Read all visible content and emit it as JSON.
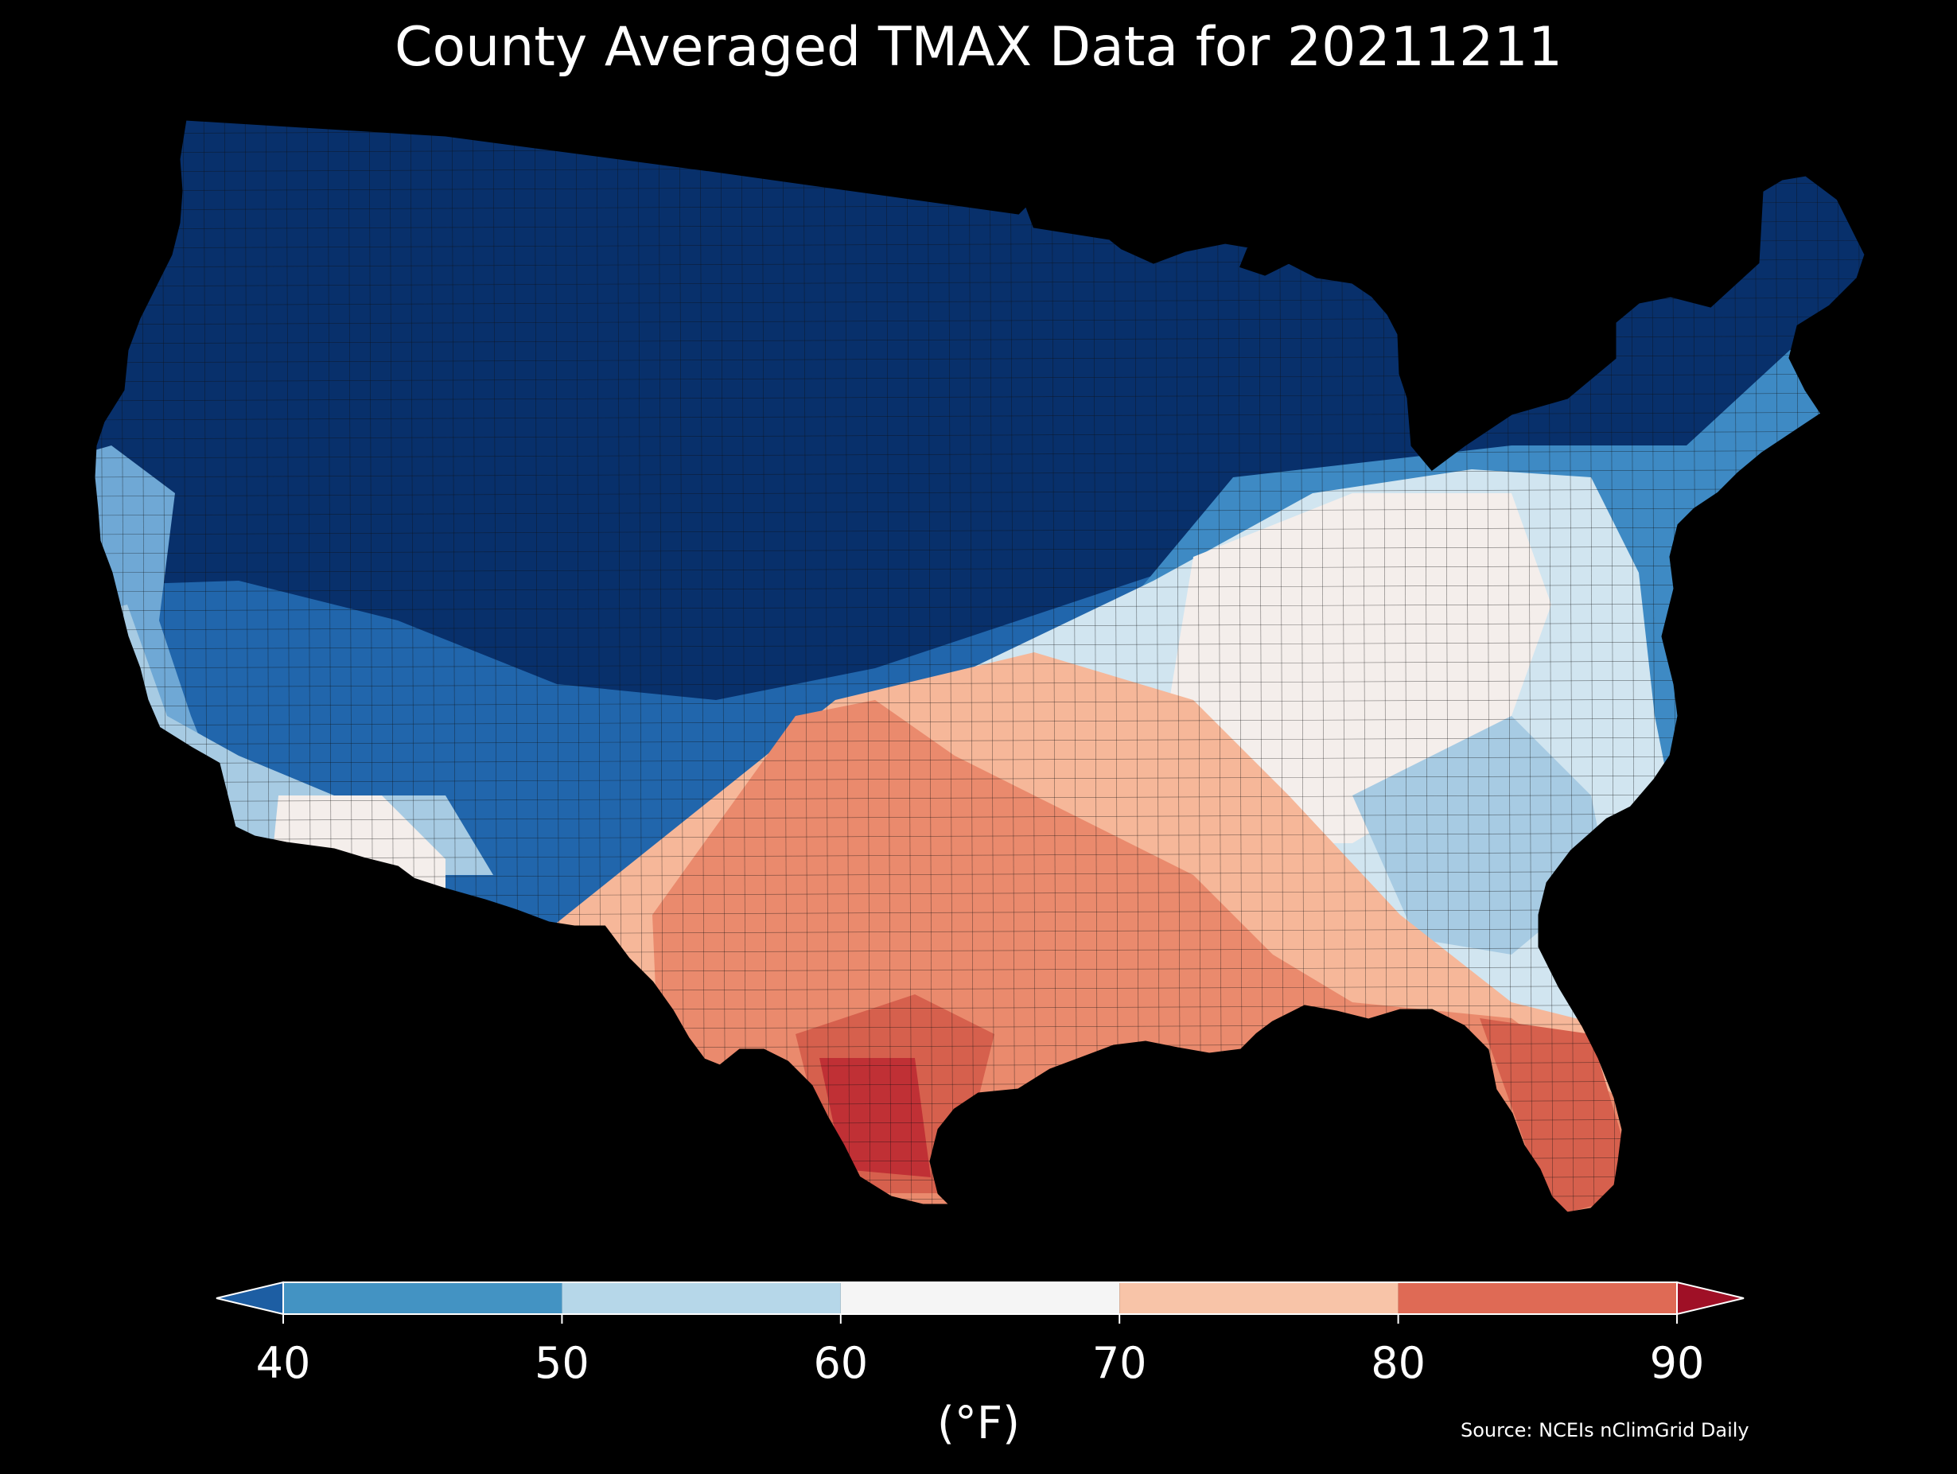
{
  "map": {
    "title": "County Averaged TMAX Data for 20211211",
    "source": "Source: NCEIs nClimGrid Daily",
    "region": "Contiguous United States",
    "variable": "TMAX",
    "unit_label": "(°F)"
  },
  "colorbar": {
    "ticks": [
      "40",
      "50",
      "60",
      "70",
      "80",
      "90"
    ],
    "bins": [
      {
        "from": 40,
        "to": 50,
        "color": "#4393c3"
      },
      {
        "from": 50,
        "to": 60,
        "color": "#b6d7e9"
      },
      {
        "from": 60,
        "to": 70,
        "color": "#f5f5f5"
      },
      {
        "from": 70,
        "to": 80,
        "color": "#f8c4a8"
      },
      {
        "from": 80,
        "to": 90,
        "color": "#df6a55"
      }
    ],
    "under_color": "#1d5ea3",
    "over_color": "#9f1026",
    "extend": "both"
  },
  "palette": {
    "c30": "#08306b",
    "c35": "#0d4a8a",
    "c40": "#2166ac",
    "c45": "#3e8ac4",
    "c50": "#6fa8d5",
    "c55": "#a7cbe3",
    "c60": "#d1e5f0",
    "c65": "#f4eeeb",
    "c70": "#fbe0d0",
    "c75": "#f6b799",
    "c80": "#ea8a6d",
    "c85": "#d6604d",
    "c90": "#c03035",
    "background": "#000000",
    "county_lines": "#111111"
  }
}
